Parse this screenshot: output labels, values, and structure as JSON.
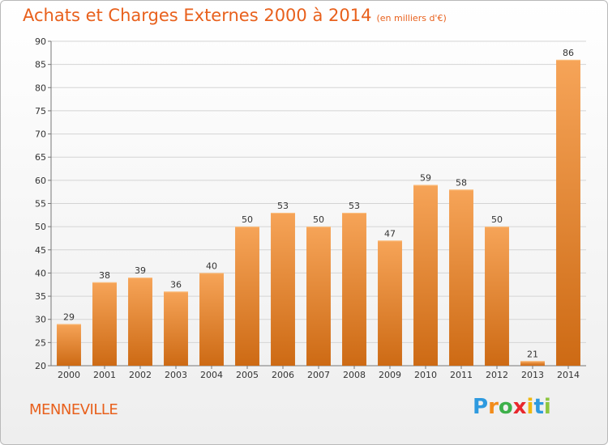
{
  "header": {
    "title": "Achats et Charges Externes 2000 à 2014",
    "subtitle": "(en milliers d'€)"
  },
  "footer": {
    "town": "MENNEVILLE",
    "logo_letters": [
      "P",
      "r",
      "o",
      "x",
      "i",
      "t",
      "i"
    ],
    "logo_colors": [
      "#2e9adf",
      "#f28c1b",
      "#3db04a",
      "#e8272d",
      "#f0b80f",
      "#2e9adf",
      "#8dc63f"
    ]
  },
  "colors": {
    "bar_top": "#f6a458",
    "bar_bottom": "#cd6a14",
    "title": "#e8601c",
    "grid": "#d4d4d4"
  },
  "chart_data": {
    "type": "bar",
    "title": "Achats et Charges Externes 2000 à 2014",
    "xlabel": "",
    "ylabel": "",
    "categories": [
      "2000",
      "2001",
      "2002",
      "2003",
      "2004",
      "2005",
      "2006",
      "2007",
      "2008",
      "2009",
      "2010",
      "2011",
      "2012",
      "2013",
      "2014"
    ],
    "values": [
      29,
      38,
      39,
      36,
      40,
      50,
      53,
      50,
      53,
      47,
      59,
      58,
      50,
      21,
      86
    ],
    "ylim": [
      20,
      90
    ],
    "yticks": [
      20,
      25,
      30,
      35,
      40,
      45,
      50,
      55,
      60,
      65,
      70,
      75,
      80,
      85,
      90
    ],
    "grid": true,
    "data_labels": true
  }
}
